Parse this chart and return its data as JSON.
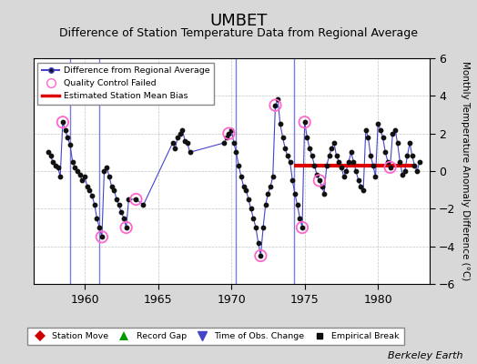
{
  "title": "UMBET",
  "subtitle": "Difference of Station Temperature Data from Regional Average",
  "ylabel": "Monthly Temperature Anomaly Difference (°C)",
  "xlabel_credit": "Berkeley Earth",
  "xlim": [
    1956.5,
    1983.5
  ],
  "ylim": [
    -6,
    6
  ],
  "yticks": [
    -6,
    -4,
    -2,
    0,
    2,
    4,
    6
  ],
  "xticks": [
    1960,
    1965,
    1970,
    1975,
    1980
  ],
  "background_color": "#d8d8d8",
  "plot_bg_color": "#ffffff",
  "line_color": "#4444cc",
  "dot_color": "#111111",
  "qc_color": "#ff66cc",
  "bias_color": "#dd0000",
  "bias_value": 0.3,
  "bias_start": 1974.3,
  "bias_end": 1982.5,
  "time_obs_changes": [
    1959.0,
    1961.0,
    1970.3,
    1974.3
  ],
  "data": [
    [
      1957.5,
      1.0
    ],
    [
      1957.67,
      0.8
    ],
    [
      1957.83,
      0.5
    ],
    [
      1958.0,
      0.3
    ],
    [
      1958.17,
      0.2
    ],
    [
      1958.33,
      -0.3
    ],
    [
      1958.5,
      2.6
    ],
    [
      1958.67,
      2.2
    ],
    [
      1958.83,
      1.8
    ],
    [
      1959.0,
      1.4
    ],
    [
      1959.17,
      0.5
    ],
    [
      1959.33,
      0.2
    ],
    [
      1959.5,
      0.0
    ],
    [
      1959.67,
      -0.2
    ],
    [
      1959.83,
      -0.5
    ],
    [
      1960.0,
      -0.3
    ],
    [
      1960.17,
      -0.8
    ],
    [
      1960.33,
      -1.0
    ],
    [
      1960.5,
      -1.3
    ],
    [
      1960.67,
      -1.8
    ],
    [
      1960.83,
      -2.5
    ],
    [
      1961.0,
      -3.0
    ],
    [
      1961.17,
      -3.5
    ],
    [
      1961.33,
      0.0
    ],
    [
      1961.5,
      0.2
    ],
    [
      1961.67,
      -0.3
    ],
    [
      1961.83,
      -0.8
    ],
    [
      1962.0,
      -1.0
    ],
    [
      1962.17,
      -1.5
    ],
    [
      1962.33,
      -1.8
    ],
    [
      1962.5,
      -2.2
    ],
    [
      1962.67,
      -2.5
    ],
    [
      1962.83,
      -3.0
    ],
    [
      1963.0,
      -1.5
    ],
    [
      1963.5,
      -1.5
    ],
    [
      1964.0,
      -1.8
    ],
    [
      1966.0,
      1.5
    ],
    [
      1966.17,
      1.2
    ],
    [
      1966.33,
      1.8
    ],
    [
      1966.5,
      2.0
    ],
    [
      1966.67,
      2.2
    ],
    [
      1966.83,
      1.6
    ],
    [
      1967.0,
      1.5
    ],
    [
      1967.17,
      1.0
    ],
    [
      1969.5,
      1.5
    ],
    [
      1969.67,
      1.8
    ],
    [
      1969.83,
      2.0
    ],
    [
      1970.0,
      2.2
    ],
    [
      1970.17,
      1.5
    ],
    [
      1970.33,
      1.0
    ],
    [
      1970.5,
      0.3
    ],
    [
      1970.67,
      -0.3
    ],
    [
      1970.83,
      -0.8
    ],
    [
      1971.0,
      -1.0
    ],
    [
      1971.17,
      -1.5
    ],
    [
      1971.33,
      -2.0
    ],
    [
      1971.5,
      -2.5
    ],
    [
      1971.67,
      -3.0
    ],
    [
      1971.83,
      -3.8
    ],
    [
      1972.0,
      -4.5
    ],
    [
      1972.17,
      -3.0
    ],
    [
      1972.33,
      -1.8
    ],
    [
      1972.5,
      -1.2
    ],
    [
      1972.67,
      -0.8
    ],
    [
      1972.83,
      -0.3
    ],
    [
      1973.0,
      3.5
    ],
    [
      1973.17,
      3.8
    ],
    [
      1973.33,
      2.5
    ],
    [
      1973.5,
      1.8
    ],
    [
      1973.67,
      1.2
    ],
    [
      1973.83,
      0.8
    ],
    [
      1974.0,
      0.5
    ],
    [
      1974.17,
      -0.5
    ],
    [
      1974.33,
      -1.2
    ],
    [
      1974.5,
      -1.8
    ],
    [
      1974.67,
      -2.5
    ],
    [
      1974.83,
      -3.0
    ],
    [
      1975.0,
      2.6
    ],
    [
      1975.17,
      1.8
    ],
    [
      1975.33,
      1.2
    ],
    [
      1975.5,
      0.8
    ],
    [
      1975.67,
      0.3
    ],
    [
      1975.83,
      -0.2
    ],
    [
      1976.0,
      -0.5
    ],
    [
      1976.17,
      -0.8
    ],
    [
      1976.33,
      -1.2
    ],
    [
      1976.5,
      0.3
    ],
    [
      1976.67,
      0.8
    ],
    [
      1976.83,
      1.2
    ],
    [
      1977.0,
      1.5
    ],
    [
      1977.17,
      0.8
    ],
    [
      1977.33,
      0.5
    ],
    [
      1977.5,
      0.2
    ],
    [
      1977.67,
      -0.3
    ],
    [
      1977.83,
      0.0
    ],
    [
      1978.0,
      0.5
    ],
    [
      1978.17,
      1.0
    ],
    [
      1978.33,
      0.5
    ],
    [
      1978.5,
      0.0
    ],
    [
      1978.67,
      -0.5
    ],
    [
      1978.83,
      -0.8
    ],
    [
      1979.0,
      -1.0
    ],
    [
      1979.17,
      2.2
    ],
    [
      1979.33,
      1.8
    ],
    [
      1979.5,
      0.8
    ],
    [
      1979.67,
      0.3
    ],
    [
      1979.83,
      -0.3
    ],
    [
      1980.0,
      2.5
    ],
    [
      1980.17,
      2.2
    ],
    [
      1980.33,
      1.8
    ],
    [
      1980.5,
      1.0
    ],
    [
      1980.67,
      0.5
    ],
    [
      1980.83,
      0.2
    ],
    [
      1981.0,
      2.0
    ],
    [
      1981.17,
      2.2
    ],
    [
      1981.33,
      1.5
    ],
    [
      1981.5,
      0.5
    ],
    [
      1981.67,
      -0.2
    ],
    [
      1981.83,
      0.0
    ],
    [
      1982.0,
      0.8
    ],
    [
      1982.17,
      1.5
    ],
    [
      1982.33,
      0.8
    ],
    [
      1982.5,
      0.3
    ],
    [
      1982.67,
      0.0
    ],
    [
      1982.83,
      0.5
    ]
  ],
  "qc_failed_times": [
    1958.5,
    1961.17,
    1962.83,
    1963.5,
    1969.83,
    1972.0,
    1973.0,
    1974.83,
    1975.0,
    1976.0,
    1980.83
  ],
  "title_fontsize": 13,
  "subtitle_fontsize": 9,
  "tick_fontsize": 9
}
